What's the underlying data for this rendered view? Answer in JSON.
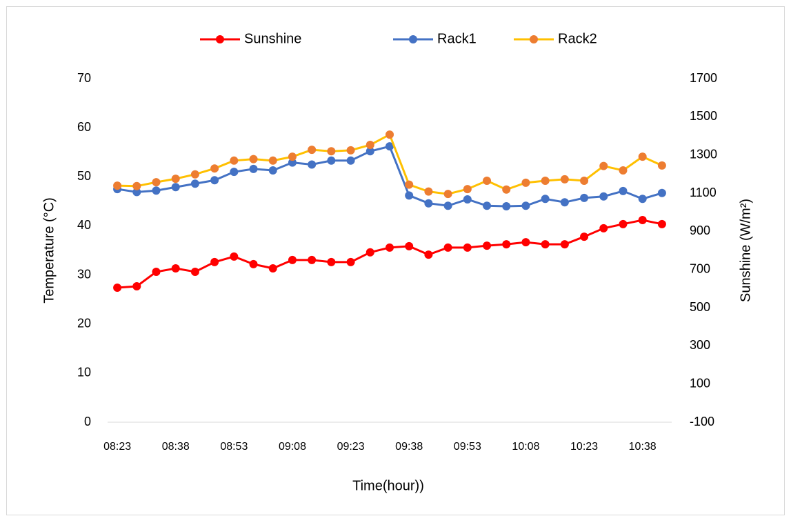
{
  "chart_data": {
    "type": "line",
    "categories": [
      "08:23",
      null,
      null,
      "08:38",
      null,
      null,
      "08:53",
      null,
      null,
      "09:08",
      null,
      null,
      "09:23",
      null,
      null,
      "09:38",
      null,
      null,
      "09:53",
      null,
      null,
      "10:08",
      null,
      null,
      "10:23",
      null,
      null,
      "10:38",
      null
    ],
    "series": [
      {
        "name": "Sunshine",
        "color": "#ff0000",
        "axis": "y2",
        "values": [
          605,
          612,
          688,
          706,
          688,
          739,
          768,
          728,
          706,
          750,
          750,
          739,
          739,
          790,
          815,
          822,
          778,
          815,
          815,
          825,
          832,
          843,
          832,
          832,
          872,
          916,
          938,
          959,
          938
        ]
      },
      {
        "name": "Rack1",
        "color": "#4472c4",
        "values": [
          47.5,
          46.9,
          47.2,
          47.9,
          48.6,
          49.3,
          51.0,
          51.6,
          51.3,
          52.9,
          52.5,
          53.3,
          53.3,
          55.2,
          56.2,
          46.2,
          44.6,
          44.1,
          45.4,
          44.1,
          44.0,
          44.1,
          45.5,
          44.8,
          45.7,
          46.0,
          47.1,
          45.5,
          46.7
        ]
      },
      {
        "name": "Rack2",
        "color": "#ed7d31",
        "line_color": "#ffc000",
        "values": [
          48.2,
          48.1,
          48.9,
          49.6,
          50.5,
          51.7,
          53.3,
          53.6,
          53.3,
          54.1,
          55.5,
          55.2,
          55.4,
          56.5,
          58.6,
          48.4,
          47.0,
          46.5,
          47.5,
          49.2,
          47.4,
          48.8,
          49.2,
          49.5,
          49.2,
          52.2,
          51.3,
          54.1,
          52.3
        ]
      }
    ],
    "xlabel": "Time(hour))",
    "ylabel": "Temperature (°C)",
    "y2label": "Sunshine (W/m²)",
    "ylim": [
      0,
      70
    ],
    "yticks": [
      0,
      10,
      20,
      30,
      40,
      50,
      60,
      70
    ],
    "y2lim": [
      -100,
      1700
    ],
    "y2ticks": [
      -100,
      100,
      300,
      500,
      700,
      900,
      1100,
      1300,
      1500,
      1700
    ],
    "grid": false,
    "legend": "top"
  }
}
